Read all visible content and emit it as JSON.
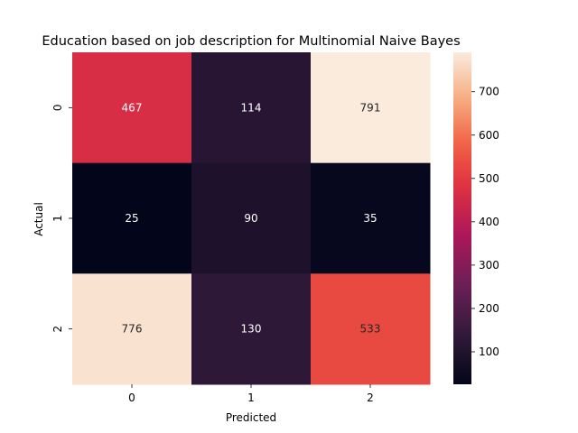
{
  "chart_data": {
    "type": "heatmap",
    "title": "Education based on job description for Multinomial Naive Bayes",
    "xlabel": "Predicted",
    "ylabel": "Actual",
    "x_categories": [
      "0",
      "1",
      "2"
    ],
    "y_categories": [
      "0",
      "1",
      "2"
    ],
    "values": [
      [
        467,
        114,
        791
      ],
      [
        25,
        90,
        35
      ],
      [
        776,
        130,
        533
      ]
    ],
    "colorbar": {
      "min": 25,
      "max": 791,
      "ticks": [
        100,
        200,
        300,
        400,
        500,
        600,
        700
      ],
      "colormap": "rocket"
    },
    "grid": false,
    "legend": "colorbar-right"
  }
}
